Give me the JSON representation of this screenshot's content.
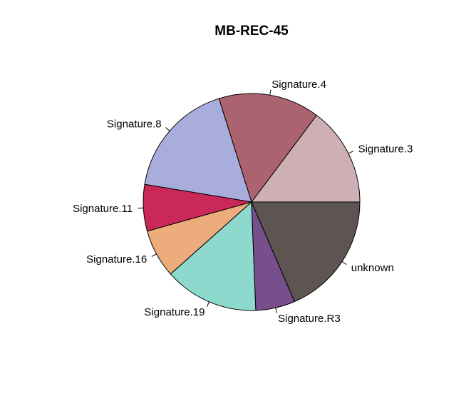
{
  "chart_data": {
    "type": "pie",
    "title": "MB-REC-45",
    "start_angle_deg": 0,
    "direction": "counterclockwise",
    "slices": [
      {
        "label": "Signature.3",
        "value": 15.3,
        "color": "#cdafb4"
      },
      {
        "label": "Signature.4",
        "value": 15.7,
        "color": "#ab6370"
      },
      {
        "label": "Signature.8",
        "value": 18.2,
        "color": "#a8addb"
      },
      {
        "label": "Signature.11",
        "value": 7.2,
        "color": "#c92858"
      },
      {
        "label": "Signature.16",
        "value": 7.5,
        "color": "#ecac7c"
      },
      {
        "label": "Signature.19",
        "value": 14.6,
        "color": "#8dd9cd"
      },
      {
        "label": "Signature.R3",
        "value": 6.1,
        "color": "#774f8c"
      },
      {
        "label": "unknown",
        "value": 19.2,
        "color": "#5e5452"
      }
    ]
  }
}
